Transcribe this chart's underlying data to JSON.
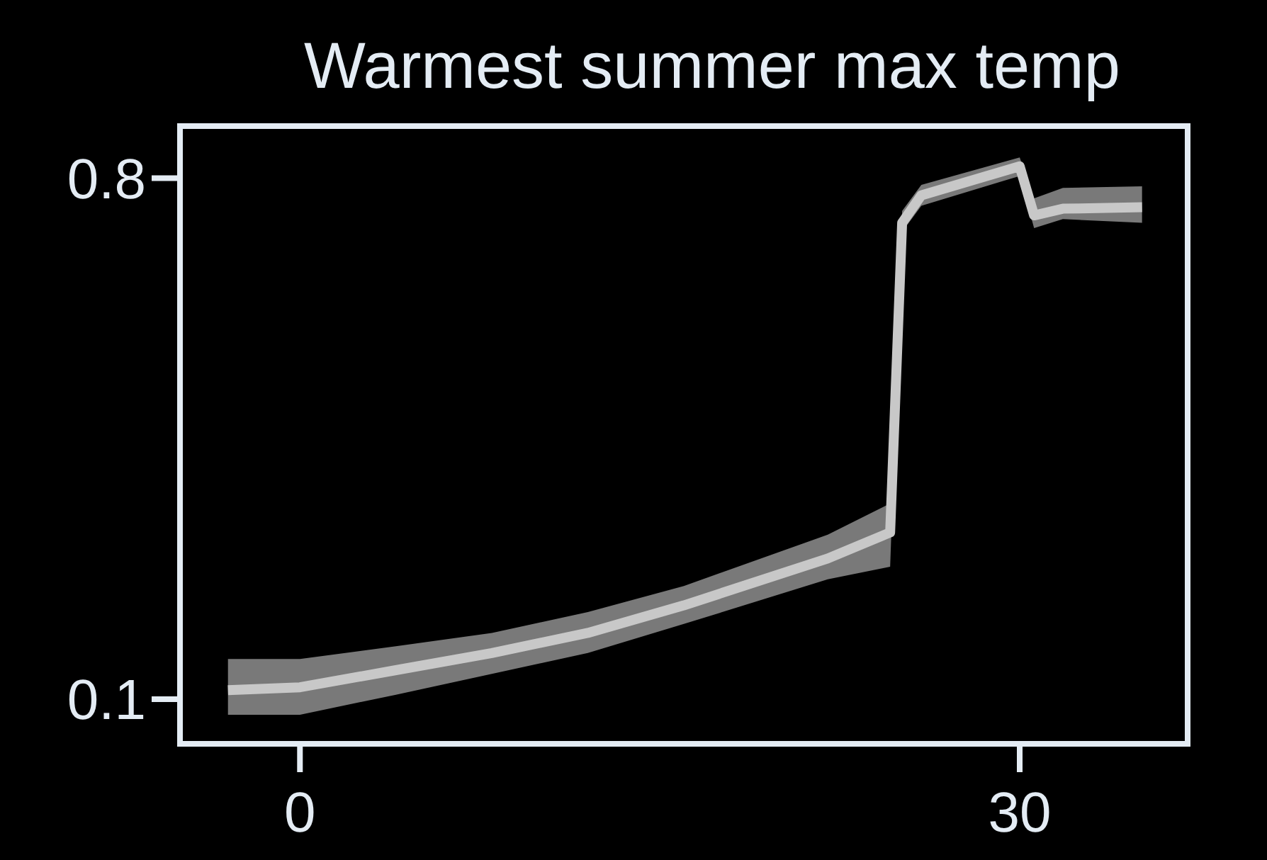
{
  "chart_data": {
    "type": "line",
    "title": "Warmest summer max temp",
    "x": [
      -3,
      0,
      4,
      8,
      12,
      16,
      22,
      24.6,
      25.1,
      25.9,
      30,
      30.6,
      31.8,
      35.1
    ],
    "series": [
      {
        "color": "#c8c8c8",
        "values": [
          0.112,
          0.116,
          0.139,
          0.162,
          0.189,
          0.226,
          0.289,
          0.324,
          0.74,
          0.777,
          0.816,
          0.75,
          0.759,
          0.761
        ],
        "lower": [
          0.079,
          0.079,
          0.106,
          0.134,
          0.162,
          0.201,
          0.261,
          0.278,
          0.728,
          0.763,
          0.803,
          0.733,
          0.745,
          0.74
        ],
        "upper": [
          0.154,
          0.154,
          0.171,
          0.189,
          0.217,
          0.252,
          0.321,
          0.363,
          0.756,
          0.791,
          0.828,
          0.773,
          0.787,
          0.789
        ]
      }
    ],
    "xlim": [
      -5,
      37
    ],
    "ylim": [
      0.04,
      0.87
    ],
    "xticks": [
      0,
      30
    ],
    "yticks": [
      0.1,
      0.8
    ],
    "grid": false,
    "line_style": "solid",
    "marker": "none"
  }
}
